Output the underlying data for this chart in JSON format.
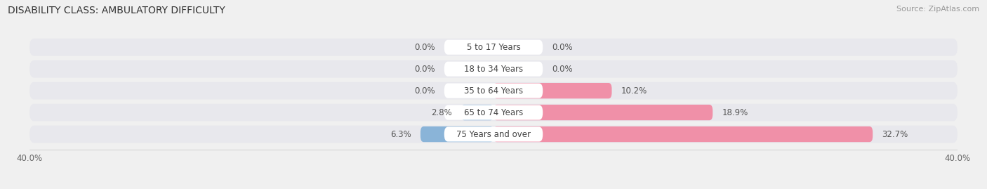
{
  "title": "DISABILITY CLASS: AMBULATORY DIFFICULTY",
  "source": "Source: ZipAtlas.com",
  "categories": [
    "5 to 17 Years",
    "18 to 34 Years",
    "35 to 64 Years",
    "65 to 74 Years",
    "75 Years and over"
  ],
  "male_values": [
    0.0,
    0.0,
    0.0,
    2.8,
    6.3
  ],
  "female_values": [
    0.0,
    0.0,
    10.2,
    18.9,
    32.7
  ],
  "male_color": "#8ab4d8",
  "female_color": "#f090a8",
  "axis_max": 40.0,
  "male_labels": [
    "0.0%",
    "0.0%",
    "0.0%",
    "2.8%",
    "6.3%"
  ],
  "female_labels": [
    "0.0%",
    "0.0%",
    "10.2%",
    "18.9%",
    "32.7%"
  ],
  "x_tick_left": "40.0%",
  "x_tick_right": "40.0%",
  "title_fontsize": 10,
  "label_fontsize": 8.5,
  "category_fontsize": 8.5,
  "source_fontsize": 8,
  "background_color": "#f0f0f0",
  "bar_bg_color": "#e2e2e8",
  "bar_row_bg": "#e8e8ed"
}
